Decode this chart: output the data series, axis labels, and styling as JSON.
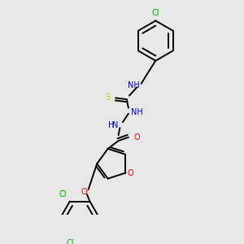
{
  "background_color": "#e8e8e8",
  "bond_color": "#000000",
  "N_color": "#0000cc",
  "O_color": "#ff0000",
  "S_color": "#cccc00",
  "Cl_color": "#00aa00",
  "lw": 1.4,
  "figsize": [
    3.0,
    3.0
  ],
  "dpi": 100,
  "xlim": [
    0,
    300
  ],
  "ylim": [
    0,
    300
  ]
}
